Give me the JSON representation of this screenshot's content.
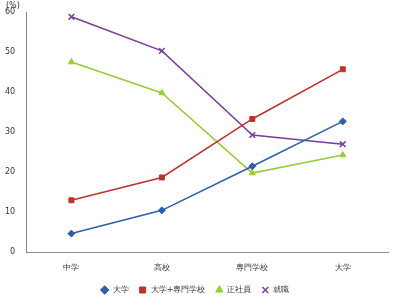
{
  "chart_data": {
    "type": "line",
    "y_label": "(%)",
    "categories": [
      "中学",
      "高校",
      "専門学校",
      "大学"
    ],
    "series": [
      {
        "name": "大学",
        "color": "#2e5fa8",
        "marker": "diamond",
        "values": [
          4.7,
          10.5,
          21.5,
          32.7
        ]
      },
      {
        "name": "大学+専門学校",
        "color": "#c0302c",
        "marker": "square",
        "values": [
          13,
          18.7,
          33.3,
          45.7
        ]
      },
      {
        "name": "正社員",
        "color": "#99cc33",
        "marker": "triangle",
        "values": [
          47.5,
          39.8,
          19.8,
          24.3
        ]
      },
      {
        "name": "就職",
        "color": "#7a3d9a",
        "marker": "x",
        "values": [
          58.8,
          50.3,
          29.3,
          27
        ]
      }
    ],
    "ylim": [
      0,
      60
    ],
    "yticks": [
      0,
      10,
      20,
      30,
      40,
      50,
      60
    ],
    "grid": false,
    "legend": "bottom"
  }
}
